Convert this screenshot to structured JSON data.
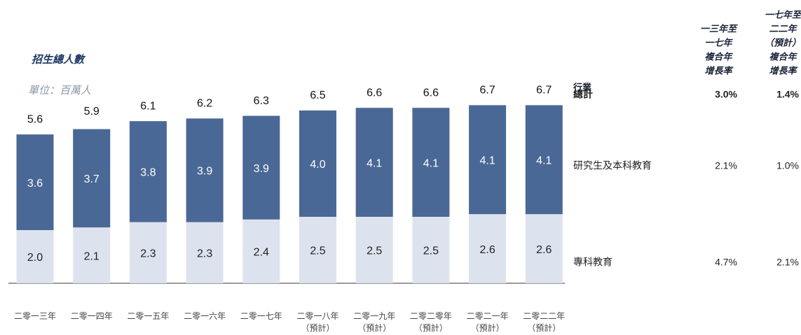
{
  "chart_data": {
    "type": "stacked_bar",
    "title": "招生總人數",
    "subtitle": "單位：百萬人",
    "categories": [
      [
        "二零一三年"
      ],
      [
        "二零一四年"
      ],
      [
        "二零一五年"
      ],
      [
        "二零一六年"
      ],
      [
        "二零一七年"
      ],
      [
        "二零一八年",
        "（預計）"
      ],
      [
        "二零一九年",
        "（預計）"
      ],
      [
        "二零二零年",
        "（預計）"
      ],
      [
        "二零二一年",
        "（預計）"
      ],
      [
        "二零二二年",
        "（預計）"
      ]
    ],
    "series": [
      {
        "name": "專科教育",
        "color": "#dde3ee",
        "label_color": "#222222",
        "values": [
          2.0,
          2.1,
          2.3,
          2.3,
          2.4,
          2.5,
          2.5,
          2.5,
          2.6,
          2.6
        ],
        "value_labels": [
          "2.0",
          "2.1",
          "2.3",
          "2.3",
          "2.4",
          "2.5",
          "2.5",
          "2.5",
          "2.6",
          "2.6"
        ]
      },
      {
        "name": "研究生及本科教育",
        "color": "#4a6895",
        "label_color": "#ffffff",
        "values": [
          3.6,
          3.7,
          3.8,
          3.9,
          3.9,
          4.0,
          4.1,
          4.1,
          4.1,
          4.1
        ],
        "value_labels": [
          "3.6",
          "3.7",
          "3.8",
          "3.9",
          "3.9",
          "4.0",
          "4.1",
          "4.1",
          "4.1",
          "4.1"
        ]
      }
    ],
    "totals": [
      5.6,
      5.9,
      6.1,
      6.2,
      6.3,
      6.5,
      6.6,
      6.6,
      6.7,
      6.7
    ]
  },
  "table": {
    "columns": [
      [
        "行業"
      ],
      [
        "一三年至",
        "一七年",
        "複合年",
        "增長率"
      ],
      [
        "一七年至",
        "二二年",
        "（預計）",
        "複合年",
        "增長率"
      ]
    ],
    "rows": [
      [
        "總計",
        "3.0%",
        "1.4%"
      ],
      [
        "研究生及本科教育",
        "2.1%",
        "1.0%"
      ],
      [
        "專科教育",
        "4.7%",
        "2.1%"
      ]
    ]
  }
}
